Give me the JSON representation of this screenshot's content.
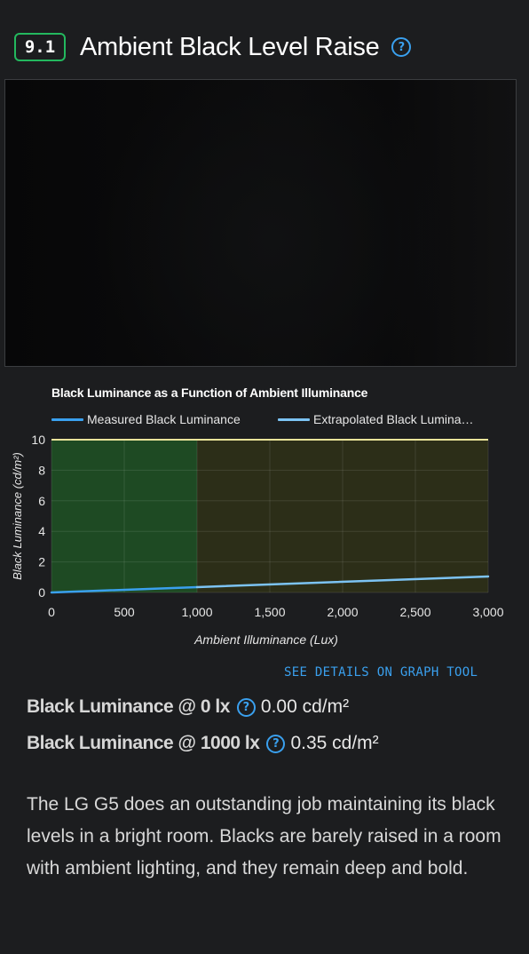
{
  "section": {
    "score": "9.1",
    "title": "Ambient Black Level Raise",
    "help_icon": "question-circle-icon"
  },
  "chart_data": {
    "type": "line",
    "title": "Black Luminance as a Function of Ambient Illuminance",
    "xlabel": "Ambient Illuminance (Lux)",
    "ylabel": "Black Luminance (cd/m²)",
    "xlim": [
      0,
      3000
    ],
    "ylim": [
      0,
      10
    ],
    "x_ticks": [
      "0",
      "500",
      "1,000",
      "1,500",
      "2,000",
      "2,500",
      "3,000"
    ],
    "y_ticks": [
      "0",
      "2",
      "4",
      "6",
      "8",
      "10"
    ],
    "grid": true,
    "legend_position": "top",
    "shaded_regions": [
      {
        "x_range": [
          0,
          1000
        ],
        "color": "#1e4a23"
      },
      {
        "x_range": [
          1000,
          3000
        ],
        "color": "#2c2e18"
      }
    ],
    "threshold_line": {
      "y": 10,
      "color": "#e9e39a"
    },
    "series": [
      {
        "name": "Measured Black Luminance",
        "color": "#3aa0ee",
        "x": [
          0,
          1000
        ],
        "y": [
          0.0,
          0.35
        ]
      },
      {
        "name": "Extrapolated Black Lumina…",
        "color": "#7cc3f3",
        "x": [
          1000,
          3000
        ],
        "y": [
          0.35,
          1.05
        ]
      }
    ]
  },
  "details_link": "SEE DETAILS ON GRAPH TOOL",
  "stats": [
    {
      "label": "Black Luminance @ 0 lx",
      "value": "0.00 cd/m²"
    },
    {
      "label": "Black Luminance @ 1000 lx",
      "value": "0.35 cd/m²"
    }
  ],
  "description": "The LG G5 does an outstanding job maintaining its black levels in a bright room. Blacks are barely raised in a room with ambient lighting, and they remain deep and bold."
}
